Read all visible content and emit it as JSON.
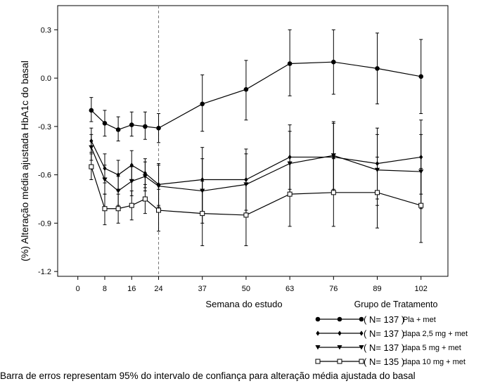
{
  "chart_data": {
    "type": "line",
    "xlabel": "Semana do estudo",
    "ylabel": "(%) Alteração média ajustada HbA1c do basal",
    "x_ticks": [
      0,
      8,
      16,
      24,
      37,
      50,
      63,
      76,
      89,
      102
    ],
    "y_ticks": [
      0.3,
      0.0,
      -0.3,
      -0.6,
      -0.9,
      -1.2
    ],
    "y_tick_labels": [
      "0.3",
      "0.0",
      "-0.3",
      "-0.6",
      "-0.9",
      "-1.2"
    ],
    "xlim": [
      -6,
      110
    ],
    "ylim": [
      -1.23,
      0.45
    ],
    "vline_x": 24,
    "legend_title": "Grupo de Tratamento",
    "series": [
      {
        "name": "Pla + met",
        "n": "137",
        "marker": "circle",
        "x": [
          4,
          8,
          12,
          16,
          20,
          24,
          37,
          50,
          63,
          76,
          89,
          102
        ],
        "y": [
          -0.2,
          -0.28,
          -0.32,
          -0.29,
          -0.3,
          -0.31,
          -0.16,
          -0.07,
          0.09,
          0.1,
          0.06,
          0.01
        ],
        "lower": [
          -0.27,
          -0.36,
          -0.39,
          -0.36,
          -0.38,
          -0.4,
          -0.33,
          -0.26,
          -0.11,
          -0.1,
          -0.16,
          -0.22
        ],
        "upper": [
          -0.12,
          -0.2,
          -0.24,
          -0.21,
          -0.21,
          -0.22,
          0.02,
          0.11,
          0.3,
          0.3,
          0.28,
          0.24
        ]
      },
      {
        "name": "dapa 2,5 mg + met",
        "n": "137",
        "marker": "diamond",
        "x": [
          4,
          8,
          12,
          16,
          20,
          24,
          37,
          50,
          63,
          76,
          89,
          102
        ],
        "y": [
          -0.39,
          -0.56,
          -0.6,
          -0.54,
          -0.59,
          -0.66,
          -0.63,
          -0.63,
          -0.49,
          -0.49,
          -0.53,
          -0.49
        ],
        "lower": [
          -0.46,
          -0.65,
          -0.7,
          -0.63,
          -0.68,
          -0.79,
          -0.83,
          -0.82,
          -0.69,
          -0.7,
          -0.75,
          -0.72
        ],
        "upper": [
          -0.31,
          -0.47,
          -0.51,
          -0.45,
          -0.5,
          -0.53,
          -0.43,
          -0.44,
          -0.29,
          -0.28,
          -0.31,
          -0.26
        ]
      },
      {
        "name": "dapa 5 mg + met",
        "n": "137",
        "marker": "triangle",
        "x": [
          4,
          8,
          12,
          16,
          20,
          24,
          37,
          50,
          63,
          76,
          89,
          102
        ],
        "y": [
          -0.43,
          -0.63,
          -0.7,
          -0.64,
          -0.61,
          -0.67,
          -0.7,
          -0.66,
          -0.53,
          -0.48,
          -0.57,
          -0.58
        ],
        "lower": [
          -0.51,
          -0.72,
          -0.79,
          -0.73,
          -0.7,
          -0.8,
          -0.9,
          -0.85,
          -0.73,
          -0.69,
          -0.79,
          -0.81
        ],
        "upper": [
          -0.35,
          -0.54,
          -0.61,
          -0.55,
          -0.52,
          -0.54,
          -0.5,
          -0.47,
          -0.33,
          -0.27,
          -0.35,
          -0.35
        ]
      },
      {
        "name": "dapa 10 mg + met",
        "n": "135",
        "marker": "square",
        "x": [
          4,
          8,
          12,
          16,
          20,
          24,
          37,
          50,
          63,
          76,
          89,
          102
        ],
        "y": [
          -0.55,
          -0.81,
          -0.81,
          -0.79,
          -0.75,
          -0.82,
          -0.84,
          -0.85,
          -0.72,
          -0.71,
          -0.71,
          -0.79
        ],
        "lower": [
          -0.63,
          -0.91,
          -0.9,
          -0.88,
          -0.84,
          -0.95,
          -1.04,
          -1.04,
          -0.92,
          -0.92,
          -0.93,
          -1.02
        ],
        "upper": [
          -0.47,
          -0.72,
          -0.72,
          -0.7,
          -0.66,
          -0.69,
          -0.64,
          -0.66,
          -0.52,
          -0.5,
          -0.49,
          -0.56
        ]
      }
    ]
  },
  "caption": "Barra de erros representam 95% do intervalo de confiança para alteração média ajustada do basal"
}
